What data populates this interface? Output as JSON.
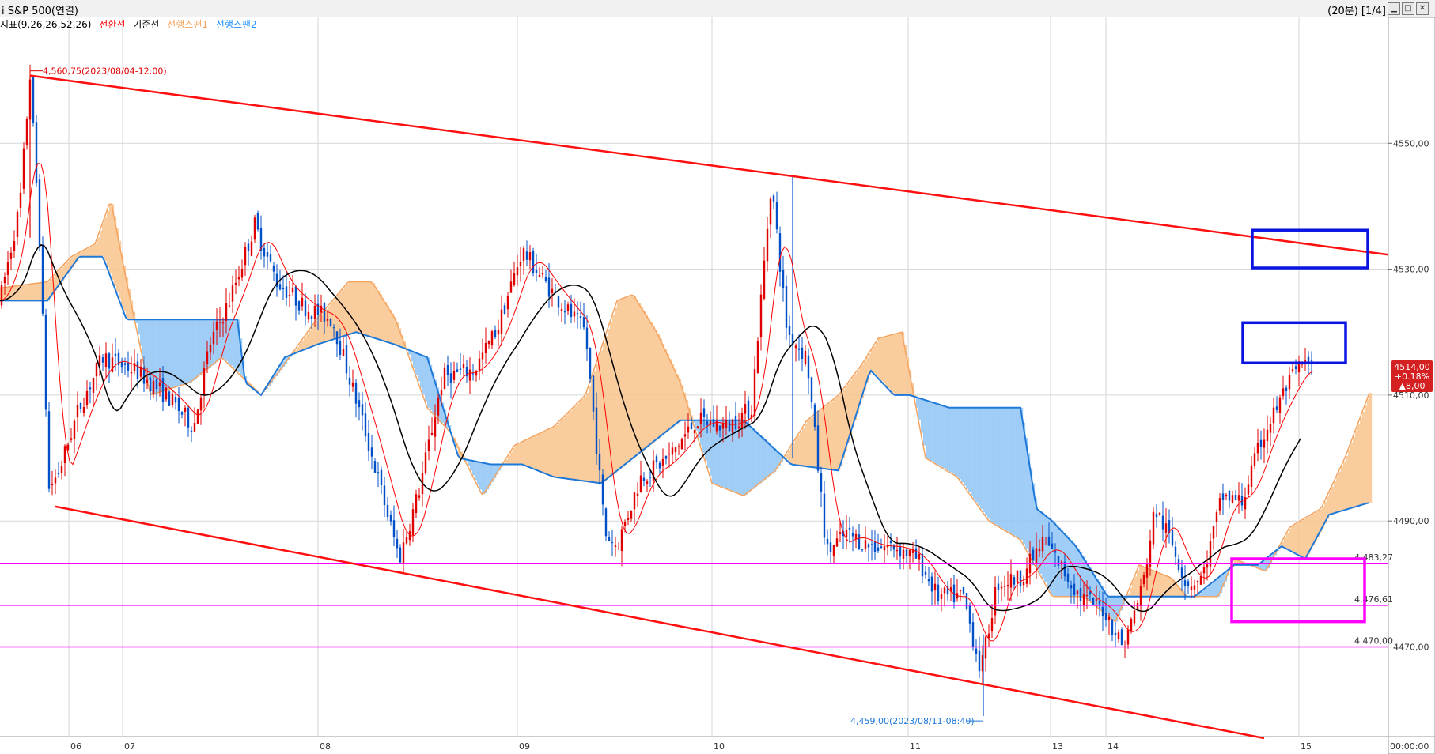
{
  "window": {
    "title": "i S&P 500(연결)",
    "info": "(20분) [1/4]",
    "min_icon": "minimize-icon",
    "max_icon": "maximize-icon",
    "close_icon": "close-icon"
  },
  "legend": {
    "indicator": "지표(9,26,26,52,26)",
    "conversion": "전환선",
    "base": "기준선",
    "span1": "선행스팬1",
    "span2": "선행스팬2",
    "colors": {
      "conversion": "#ff0000",
      "base": "#000000",
      "span1": "#f4a460",
      "span2": "#1e90ff"
    }
  },
  "chart_data": {
    "type": "candlestick",
    "y_ticks": [
      "4550,00",
      "4530,00",
      "4510,00",
      "4490,00",
      "4470,00"
    ],
    "ylim": [
      4456,
      4570
    ],
    "x_ticks": [
      "06",
      "07",
      "08",
      "09",
      "10",
      "11",
      "13",
      "14",
      "15"
    ],
    "x_axis_end_label": "00:00:00",
    "current_price": {
      "value": "4514,00",
      "change_pct": "+0.18%",
      "change": "▲8,00"
    },
    "annotations": {
      "high": "4,560,75(2023/08/04-12:00)",
      "low": "4,459,00(2023/08/11-08:40)"
    },
    "horizontal_levels": [
      {
        "label": "4,483,27",
        "value": 4483.27
      },
      {
        "label": "4,476,61",
        "value": 4476.61
      },
      {
        "label": "4,470,00",
        "value": 4470.0
      }
    ],
    "trend_lines": [
      {
        "name": "upper",
        "from": [
          "08/04 12:00",
          4560.75
        ],
        "to": [
          "08/15 end",
          4532.3
        ]
      },
      {
        "name": "lower",
        "from": [
          "08/04 14:00",
          4492.3
        ],
        "to": [
          "08/15 end",
          4455.5
        ]
      }
    ]
  }
}
